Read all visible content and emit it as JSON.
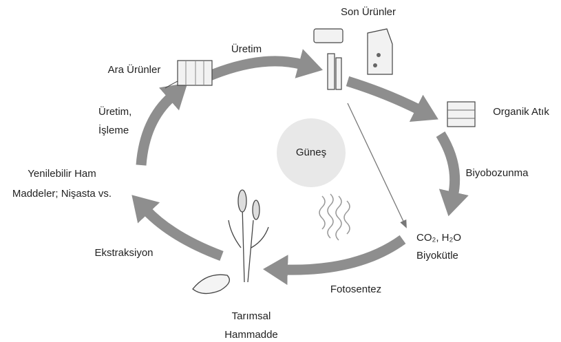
{
  "labels": {
    "end_products": "Son Ürünler",
    "production": "Üretim",
    "intermediates": "Ara Ürünler",
    "organic_waste": "Organik Atık",
    "processing": [
      "Üretim,",
      "İşleme"
    ],
    "sun": "Güneş",
    "biodegradation": "Biyobozunma",
    "renewable": [
      "Yenilebilir Ham",
      "Maddeler; Nişasta vs."
    ],
    "co2": [
      "CO₂, H₂O",
      "Biyokütle"
    ],
    "extraction": "Ekstraksiyon",
    "photosynthesis": "Fotosentez",
    "agricultural": [
      "Tarımsal",
      "Hammadde"
    ]
  }
}
